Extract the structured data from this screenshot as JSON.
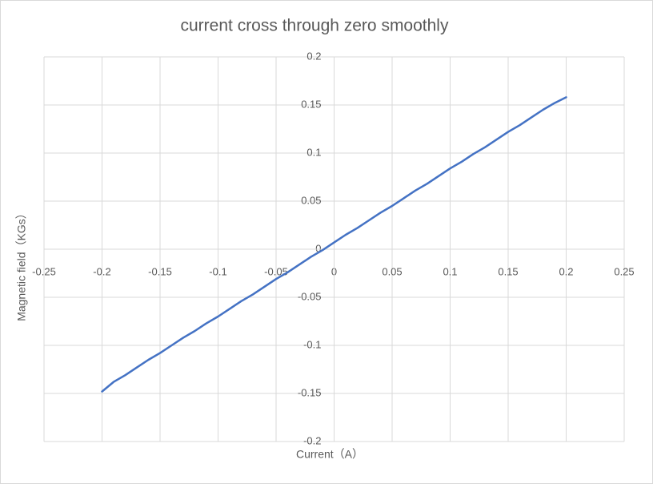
{
  "chart_data": {
    "type": "scatter-line",
    "title": "current cross through zero smoothly",
    "x_label": "Current（A）",
    "y_label": "Magnetic field（KGs）",
    "x": [
      -0.2,
      -0.19,
      -0.18,
      -0.17,
      -0.16,
      -0.15,
      -0.14,
      -0.13,
      -0.12,
      -0.11,
      -0.1,
      -0.09,
      -0.08,
      -0.07,
      -0.06,
      -0.05,
      -0.04,
      -0.03,
      -0.02,
      -0.01,
      0,
      0.01,
      0.02,
      0.03,
      0.04,
      0.05,
      0.06,
      0.07,
      0.08,
      0.09,
      0.1,
      0.11,
      0.12,
      0.13,
      0.14,
      0.15,
      0.16,
      0.17,
      0.18,
      0.19,
      0.2
    ],
    "values": [
      -0.148,
      -0.138,
      -0.131,
      -0.123,
      -0.115,
      -0.108,
      -0.1,
      -0.092,
      -0.085,
      -0.077,
      -0.07,
      -0.062,
      -0.054,
      -0.047,
      -0.039,
      -0.031,
      -0.024,
      -0.016,
      -0.008,
      -0.001,
      0.007,
      0.015,
      0.022,
      0.03,
      0.038,
      0.045,
      0.053,
      0.061,
      0.068,
      0.076,
      0.084,
      0.091,
      0.099,
      0.106,
      0.114,
      0.122,
      0.129,
      0.137,
      0.145,
      0.152,
      0.158
    ],
    "color": "#4472c4",
    "xlim": [
      -0.25,
      0.25
    ],
    "xticks": [
      -0.25,
      -0.2,
      -0.15,
      -0.1,
      -0.05,
      0,
      0.05,
      0.1,
      0.15,
      0.2,
      0.25
    ],
    "ylim": [
      -0.2,
      0.2
    ],
    "yticks": [
      -0.2,
      -0.15,
      -0.1,
      -0.05,
      0,
      0.05,
      0.1,
      0.15,
      0.2
    ],
    "grid": true
  }
}
